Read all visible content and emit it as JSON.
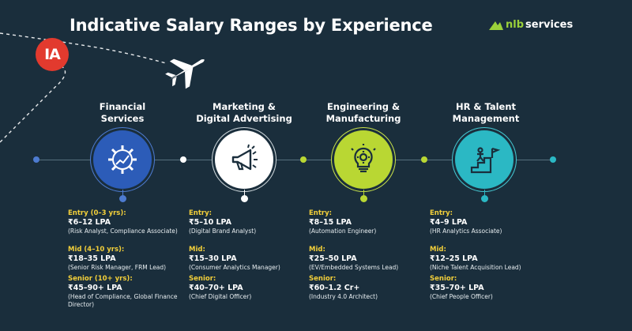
{
  "title": "Indicative Salary Ranges by Experience",
  "brand": {
    "prefix": "nlb",
    "suffix": "services"
  },
  "logo_text": "IA",
  "colors": {
    "background": "#1a2e3c",
    "financial": "#2c5cb8",
    "engineering": "#b9d733",
    "hr": "#2bb8c4",
    "level_label": "#f2cf3a",
    "logo": "#e23a2e"
  },
  "columns": [
    {
      "title_line1": "Financial",
      "title_line2": "Services",
      "icon": "gear-growth-icon",
      "levels": [
        {
          "label": "Entry (0–3 yrs):",
          "range": "₹6–12 LPA",
          "roles": "(Risk Analyst, Compliance Associate)"
        },
        {
          "label": "Mid (4–10 yrs):",
          "range": "₹18–35 LPA",
          "roles": "(Senior Risk Manager, FRM Lead)"
        },
        {
          "label": "Senior (10+ yrs):",
          "range": "₹45–90+ LPA",
          "roles": "(Head of Compliance, Global Finance Director)"
        }
      ]
    },
    {
      "title_line1": "Marketing &",
      "title_line2": "Digital Advertising",
      "icon": "megaphone-icon",
      "levels": [
        {
          "label": "Entry:",
          "range": "₹5–10 LPA",
          "roles": "(Digital Brand Analyst)"
        },
        {
          "label": "Mid:",
          "range": "₹15–30 LPA",
          "roles": "(Consumer Analytics Manager)"
        },
        {
          "label": "Senior:",
          "range": "₹40–70+ LPA",
          "roles": "(Chief Digital Officer)"
        }
      ]
    },
    {
      "title_line1": "Engineering &",
      "title_line2": "Manufacturing",
      "icon": "lightbulb-gear-icon",
      "levels": [
        {
          "label": "Entry:",
          "range": "₹8–15 LPA",
          "roles": "(Automation Engineer)"
        },
        {
          "label": "Mid:",
          "range": "₹25–50 LPA",
          "roles": "(EV/Embedded Systems Lead)"
        },
        {
          "label": "Senior:",
          "range": "₹60–1.2 Cr+",
          "roles": "(Industry 4.0 Architect)"
        }
      ]
    },
    {
      "title_line1": "HR & Talent",
      "title_line2": "Management",
      "icon": "career-stairs-icon",
      "levels": [
        {
          "label": "Entry:",
          "range": "₹4–9 LPA",
          "roles": "(HR Analytics Associate)"
        },
        {
          "label": "Mid:",
          "range": "₹12–25 LPA",
          "roles": "(Niche Talent Acquisition Lead)"
        },
        {
          "label": "Senior:",
          "range": "₹35–70+ LPA",
          "roles": "(Chief People Officer)"
        }
      ]
    }
  ]
}
